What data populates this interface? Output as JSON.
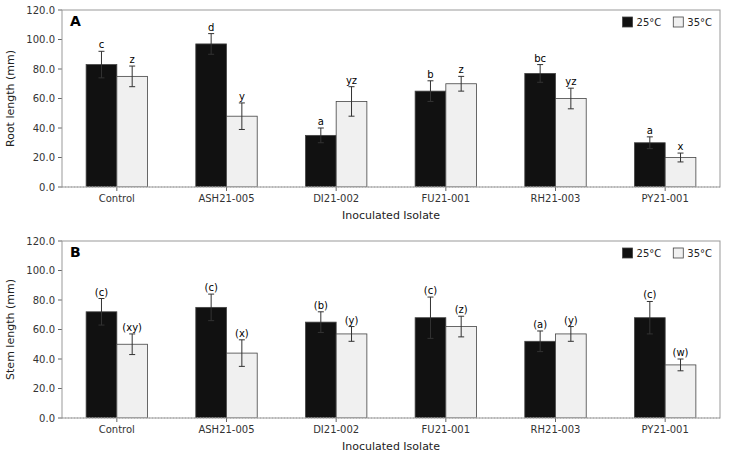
{
  "chart_data": [
    {
      "type": "bar",
      "title": "A",
      "ylabel": "Root length (mm)",
      "xlabel": "Inoculated Isolate",
      "categories": [
        "Control",
        "ASH21-005",
        "DI21-002",
        "FU21-001",
        "RH21-003",
        "PY21-001"
      ],
      "series": [
        {
          "name": "25°C",
          "color": "#111111",
          "values": [
            83,
            97,
            35,
            65,
            77,
            30
          ],
          "errors": [
            9,
            7,
            5,
            7,
            6,
            4
          ],
          "annotations": [
            "c",
            "d",
            "a",
            "b",
            "bc",
            "a"
          ]
        },
        {
          "name": "35°C",
          "color": "#f0f0f0",
          "values": [
            75,
            48,
            58,
            70,
            60,
            20
          ],
          "errors": [
            7,
            9,
            10,
            5,
            7,
            3
          ],
          "annotations": [
            "z",
            "y",
            "yz",
            "z",
            "yz",
            "x"
          ]
        }
      ],
      "ylim": [
        0,
        120
      ],
      "yticks": [
        {
          "value": 0,
          "label": "0.0"
        },
        {
          "value": 20,
          "label": "20.0"
        },
        {
          "value": 40,
          "label": "40.0"
        },
        {
          "value": 60,
          "label": "60.0"
        },
        {
          "value": 80,
          "label": "80.0"
        },
        {
          "value": 100,
          "label": "100.0"
        },
        {
          "value": 120,
          "label": "120.0"
        }
      ],
      "grid": false,
      "legend": "upper right"
    },
    {
      "type": "bar",
      "title": "B",
      "ylabel": "Stem length (mm)",
      "xlabel": "Inoculated Isolate",
      "categories": [
        "Control",
        "ASH21-005",
        "DI21-002",
        "FU21-001",
        "RH21-003",
        "PY21-001"
      ],
      "series": [
        {
          "name": "25°C",
          "color": "#111111",
          "values": [
            72,
            75,
            65,
            68,
            52,
            68
          ],
          "errors": [
            9,
            9,
            7,
            14,
            7,
            11
          ],
          "annotations": [
            "(c)",
            "(c)",
            "(b)",
            "(c)",
            "(a)",
            "(c)"
          ]
        },
        {
          "name": "35°C",
          "color": "#f0f0f0",
          "values": [
            50,
            44,
            57,
            62,
            57,
            36
          ],
          "errors": [
            7,
            9,
            5,
            7,
            5,
            4
          ],
          "annotations": [
            "(xy)",
            "(x)",
            "(y)",
            "(z)",
            "(y)",
            "(w)"
          ]
        }
      ],
      "ylim": [
        0,
        120
      ],
      "yticks": [
        {
          "value": 0,
          "label": "0.0"
        },
        {
          "value": 20,
          "label": "20.0"
        },
        {
          "value": 40,
          "label": "40.0"
        },
        {
          "value": 60,
          "label": "60.0"
        },
        {
          "value": 80,
          "label": "80.0"
        },
        {
          "value": 100,
          "label": "100.0"
        },
        {
          "value": 120,
          "label": "120.0"
        }
      ],
      "grid": false,
      "legend": "upper right"
    }
  ]
}
